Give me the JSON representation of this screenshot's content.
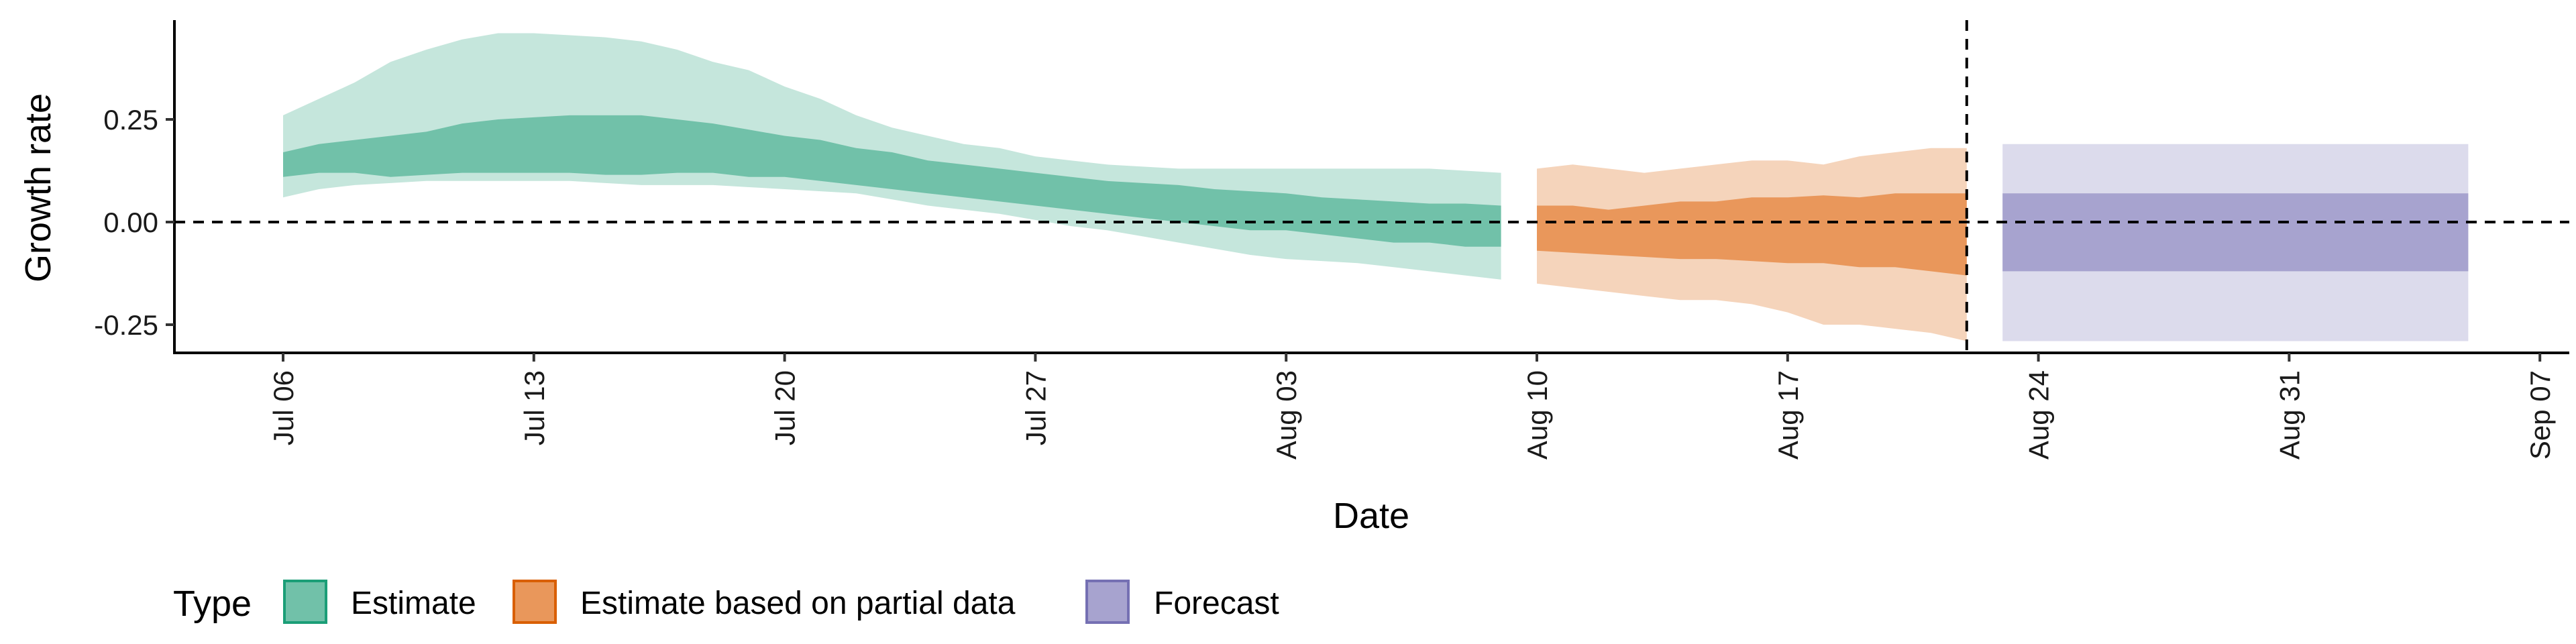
{
  "chart_data": {
    "type": "area",
    "xlabel": "Date",
    "ylabel": "Growth rate",
    "x_axis": {
      "start": "2020-07-06",
      "ticks": [
        "Jul 06",
        "Jul 13",
        "Jul 20",
        "Jul 27",
        "Aug 03",
        "Aug 10",
        "Aug 17",
        "Aug 24",
        "Aug 31",
        "Sep 07"
      ],
      "range": [
        "2020-07-03",
        "2020-09-07"
      ]
    },
    "y_axis": {
      "ticks": [
        "-0.25",
        "0.00",
        "0.25"
      ],
      "tick_values": [
        -0.25,
        0,
        0.25
      ],
      "range": [
        -0.32,
        0.5
      ]
    },
    "reference_lines": {
      "horizontal_y": 0,
      "vertical_x": "2020-08-22"
    },
    "legend": {
      "title": "Type",
      "placement": "bottom",
      "items": [
        {
          "label": "Estimate",
          "fill": "#71c1a9",
          "border": "#1b9e77"
        },
        {
          "label": "Estimate based on partial data",
          "fill": "#e9975b",
          "border": "#d95f02"
        },
        {
          "label": "Forecast",
          "fill": "#a7a3cf",
          "border": "#7570b3"
        }
      ]
    },
    "series": [
      {
        "name": "Estimate",
        "color_outer": "#c5e6dc",
        "color_inner": "#71c1a9",
        "x": [
          "2020-07-06",
          "2020-07-07",
          "2020-07-08",
          "2020-07-09",
          "2020-07-10",
          "2020-07-11",
          "2020-07-12",
          "2020-07-13",
          "2020-07-14",
          "2020-07-15",
          "2020-07-16",
          "2020-07-17",
          "2020-07-18",
          "2020-07-19",
          "2020-07-20",
          "2020-07-21",
          "2020-07-22",
          "2020-07-23",
          "2020-07-24",
          "2020-07-25",
          "2020-07-26",
          "2020-07-27",
          "2020-07-28",
          "2020-07-29",
          "2020-07-30",
          "2020-07-31",
          "2020-08-01",
          "2020-08-02",
          "2020-08-03",
          "2020-08-04",
          "2020-08-05",
          "2020-08-06",
          "2020-08-07",
          "2020-08-08",
          "2020-08-09"
        ],
        "upper90": [
          0.26,
          0.3,
          0.34,
          0.39,
          0.42,
          0.445,
          0.46,
          0.46,
          0.455,
          0.45,
          0.44,
          0.42,
          0.39,
          0.37,
          0.33,
          0.3,
          0.26,
          0.23,
          0.21,
          0.19,
          0.18,
          0.16,
          0.15,
          0.14,
          0.135,
          0.13,
          0.13,
          0.13,
          0.13,
          0.13,
          0.13,
          0.13,
          0.13,
          0.125,
          0.12
        ],
        "upper50": [
          0.17,
          0.19,
          0.2,
          0.21,
          0.22,
          0.24,
          0.25,
          0.255,
          0.26,
          0.26,
          0.26,
          0.25,
          0.24,
          0.225,
          0.21,
          0.2,
          0.18,
          0.17,
          0.15,
          0.14,
          0.13,
          0.12,
          0.11,
          0.1,
          0.095,
          0.09,
          0.08,
          0.075,
          0.07,
          0.06,
          0.055,
          0.05,
          0.045,
          0.045,
          0.04
        ],
        "lower50": [
          0.11,
          0.12,
          0.12,
          0.11,
          0.115,
          0.12,
          0.12,
          0.12,
          0.12,
          0.115,
          0.115,
          0.12,
          0.12,
          0.11,
          0.11,
          0.1,
          0.09,
          0.08,
          0.07,
          0.06,
          0.05,
          0.04,
          0.03,
          0.02,
          0.01,
          0.0,
          -0.01,
          -0.02,
          -0.02,
          -0.03,
          -0.04,
          -0.05,
          -0.05,
          -0.06,
          -0.06
        ],
        "lower90": [
          0.06,
          0.08,
          0.09,
          0.095,
          0.1,
          0.1,
          0.1,
          0.1,
          0.1,
          0.095,
          0.09,
          0.09,
          0.09,
          0.085,
          0.08,
          0.075,
          0.07,
          0.055,
          0.04,
          0.03,
          0.02,
          0.005,
          -0.01,
          -0.02,
          -0.035,
          -0.05,
          -0.065,
          -0.08,
          -0.09,
          -0.095,
          -0.1,
          -0.11,
          -0.12,
          -0.13,
          -0.14
        ]
      },
      {
        "name": "Estimate based on partial data",
        "color_outer": "#f5d4bb",
        "color_inner": "#e9975b",
        "x": [
          "2020-08-10",
          "2020-08-11",
          "2020-08-12",
          "2020-08-13",
          "2020-08-14",
          "2020-08-15",
          "2020-08-16",
          "2020-08-17",
          "2020-08-18",
          "2020-08-19",
          "2020-08-20",
          "2020-08-21",
          "2020-08-22"
        ],
        "upper90": [
          0.13,
          0.14,
          0.13,
          0.12,
          0.13,
          0.14,
          0.15,
          0.15,
          0.14,
          0.16,
          0.17,
          0.18,
          0.18
        ],
        "upper50": [
          0.04,
          0.04,
          0.03,
          0.04,
          0.05,
          0.05,
          0.06,
          0.06,
          0.065,
          0.06,
          0.07,
          0.07,
          0.07
        ],
        "lower50": [
          -0.07,
          -0.075,
          -0.08,
          -0.085,
          -0.09,
          -0.09,
          -0.095,
          -0.1,
          -0.1,
          -0.11,
          -0.11,
          -0.12,
          -0.13
        ],
        "lower90": [
          -0.15,
          -0.16,
          -0.17,
          -0.18,
          -0.19,
          -0.19,
          -0.2,
          -0.22,
          -0.25,
          -0.25,
          -0.26,
          -0.27,
          -0.29
        ]
      },
      {
        "name": "Forecast",
        "color_outer": "#dcdbec",
        "color_inner": "#a7a3cf",
        "x": [
          "2020-08-23",
          "2020-09-05"
        ],
        "upper90": [
          0.19,
          0.19
        ],
        "upper50": [
          0.07,
          0.07
        ],
        "lower50": [
          -0.12,
          -0.12
        ],
        "lower90": [
          -0.29,
          -0.29
        ]
      }
    ]
  }
}
